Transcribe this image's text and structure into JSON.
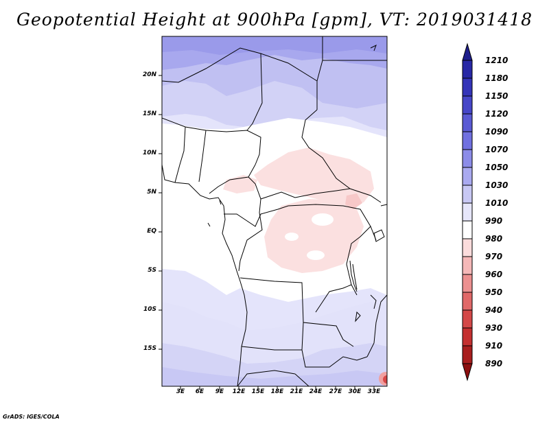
{
  "title": "Geopotential Height at 900hPa [gpm], VT: 2019031418",
  "credit": "GrADS: IGES/COLA",
  "lat_labels": [
    "20N",
    "15N",
    "10N",
    "5N",
    "EQ",
    "5S",
    "10S",
    "15S"
  ],
  "lon_labels": [
    "3E",
    "6E",
    "9E",
    "12E",
    "15E",
    "18E",
    "21E",
    "24E",
    "27E",
    "30E",
    "33E"
  ],
  "colorbar": {
    "labels": [
      "1210",
      "1180",
      "1150",
      "1120",
      "1090",
      "1070",
      "1050",
      "1030",
      "1010",
      "990",
      "980",
      "970",
      "960",
      "950",
      "940",
      "930",
      "910",
      "890"
    ],
    "colors": [
      "#1e1e8c",
      "#2828a6",
      "#3434b8",
      "#4646c8",
      "#5a5ad4",
      "#7070e0",
      "#8c8ce8",
      "#aaaaf0",
      "#c8c8f4",
      "#e6e6fa",
      "#ffffff",
      "#fbdcdc",
      "#f5b8b8",
      "#ec9090",
      "#e06868",
      "#d44848",
      "#c43030",
      "#a81e1e",
      "#8c1010"
    ]
  }
}
